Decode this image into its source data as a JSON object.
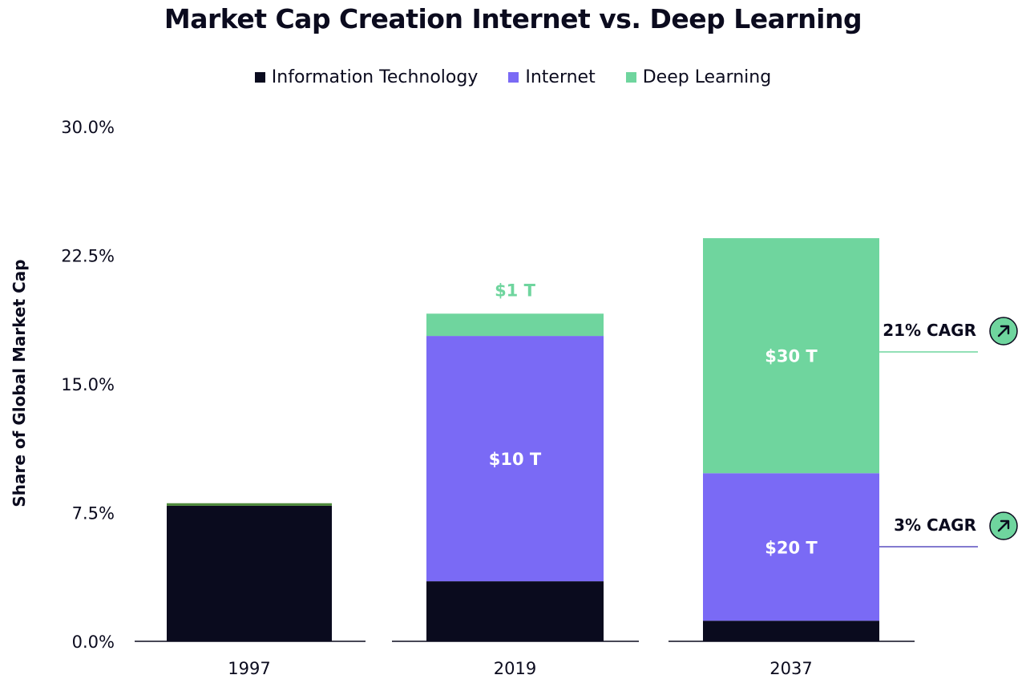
{
  "chart_data": {
    "type": "bar",
    "stacked": true,
    "title": "Market Cap Creation Internet vs. Deep Learning",
    "ylabel": "Share of Global Market Cap",
    "xlabel": "",
    "ylim": [
      0,
      30
    ],
    "yticks": [
      "0.0%",
      "7.5%",
      "15.0%",
      "22.5%",
      "30.0%"
    ],
    "ytick_values": [
      0,
      7.5,
      15,
      22.5,
      30
    ],
    "categories": [
      "1997",
      "2019",
      "2037"
    ],
    "legend_position": "top-center",
    "grid": false,
    "series": [
      {
        "name": "Information Technology",
        "color": "#0a0b1e",
        "values": [
          7.9,
          3.5,
          1.2
        ],
        "labels": [
          "",
          "",
          ""
        ]
      },
      {
        "name": "Internet",
        "color": "#7a6af5",
        "values": [
          0.0,
          14.3,
          8.6
        ],
        "labels": [
          "",
          "$10 T",
          "$20 T"
        ]
      },
      {
        "name": "Deep Learning",
        "color": "#6fd59e",
        "values": [
          0.15,
          1.3,
          13.7
        ],
        "labels": [
          "",
          "",
          "$30 T"
        ]
      }
    ],
    "top_labels": [
      {
        "category": "2019",
        "text": "$1 T",
        "color": "#6fd59e"
      }
    ],
    "annotations": [
      {
        "text": "21% CAGR",
        "series": "Deep Learning",
        "line_color": "#6fd59e",
        "icon": "arrow-up-right-icon"
      },
      {
        "text": "3% CAGR",
        "series": "Internet",
        "line_color": "#5a4fbf",
        "icon": "arrow-up-right-icon"
      }
    ]
  },
  "colors": {
    "bar_1997_top_strip": "#4f8a3c",
    "axis": "#0b0b1e",
    "icon_fill": "#6fd59e"
  }
}
